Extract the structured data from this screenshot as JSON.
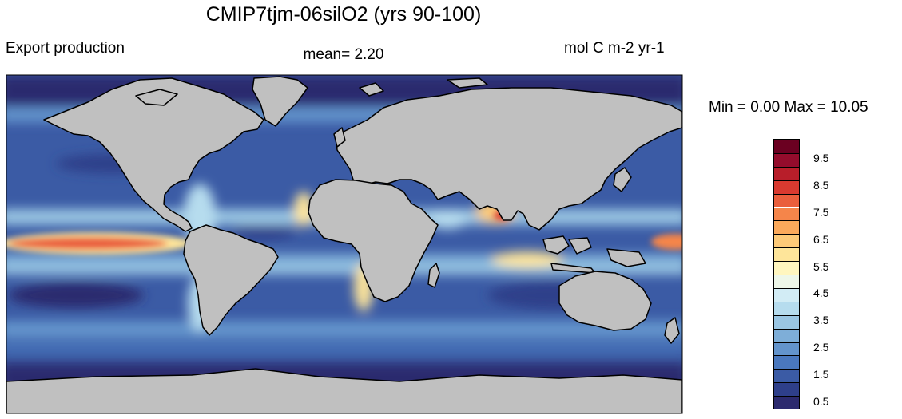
{
  "title": "CMIP7tjm-06silO2 (yrs 90-100)",
  "field_name": "Export production",
  "mean_text": "mean=   2.20",
  "units": "mol C m-2 yr-1",
  "minmax_text": "Min =   0.00 Max =  10.05",
  "land_color": "#c0c0c0",
  "colorbar": {
    "colors": [
      "#2c2a6e",
      "#2e3f8a",
      "#3b5ba5",
      "#4a78be",
      "#6394cc",
      "#7eaed8",
      "#9ac6e3",
      "#b6dcee",
      "#d2ecf5",
      "#eef7e9",
      "#fff6bf",
      "#fee59a",
      "#fdca78",
      "#fba95b",
      "#f5854a",
      "#ea5e3c",
      "#d93a30",
      "#b81e2a",
      "#940c2c",
      "#6b0021"
    ],
    "labels": [
      "0.5",
      "1.5",
      "2.5",
      "3.5",
      "4.5",
      "5.5",
      "6.5",
      "7.5",
      "8.5",
      "9.5"
    ]
  }
}
